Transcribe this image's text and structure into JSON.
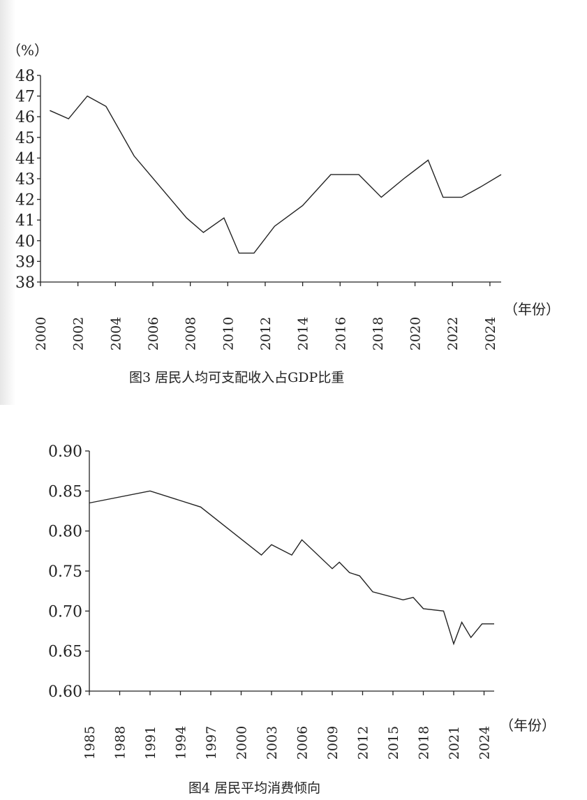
{
  "chart_data": [
    {
      "type": "line",
      "title": "图3 居民人均可支配收入占GDP比重",
      "ylabel": "（%）",
      "xlabel": "（年份）",
      "ylim": [
        38,
        48
      ],
      "xlim": [
        2000,
        2024.6
      ],
      "y_ticks": [
        "48",
        "47",
        "46",
        "45",
        "44",
        "43",
        "42",
        "41",
        "40",
        "39",
        "38"
      ],
      "x_ticks": [
        "2000",
        "2002",
        "2004",
        "2006",
        "2008",
        "2010",
        "2012",
        "2014",
        "2016",
        "2018",
        "2020",
        "2022",
        "2024"
      ],
      "series": [
        {
          "name": "居民人均可支配收入占GDP比重",
          "x": [
            2000.5,
            2001.5,
            2002.5,
            2003.5,
            2005,
            2006.4,
            2007.8,
            2008.7,
            2009.8,
            2010.6,
            2011.4,
            2012.5,
            2014,
            2015.5,
            2017,
            2018.2,
            2019.4,
            2020.7,
            2021.5,
            2022.5,
            2023.5,
            2024.6
          ],
          "values": [
            46.3,
            45.9,
            47.0,
            46.5,
            44.1,
            42.6,
            41.1,
            40.4,
            41.1,
            39.4,
            39.4,
            40.7,
            41.7,
            43.2,
            43.2,
            42.1,
            43.0,
            43.9,
            42.1,
            42.1,
            42.6,
            43.2
          ]
        }
      ]
    },
    {
      "type": "line",
      "title": "图4 居民平均消费倾向",
      "xlabel": "（年份）",
      "ylim": [
        0.6,
        0.9
      ],
      "xlim": [
        1985,
        2025
      ],
      "y_ticks": [
        "0.90",
        "0.85",
        "0.80",
        "0.75",
        "0.70",
        "0.65",
        "0.60"
      ],
      "x_ticks": [
        "1985",
        "1988",
        "1991",
        "1994",
        "1997",
        "2000",
        "2003",
        "2006",
        "2009",
        "2012",
        "2015",
        "2018",
        "2021",
        "2024"
      ],
      "series": [
        {
          "name": "居民平均消费倾向",
          "x": [
            1985,
            1991,
            1996,
            2002,
            2003,
            2005,
            2006,
            2009,
            2009.7,
            2010.7,
            2011.7,
            2013,
            2016,
            2017,
            2018,
            2020,
            2021,
            2021.8,
            2022.7,
            2023.8,
            2025
          ],
          "values": [
            0.835,
            0.85,
            0.83,
            0.77,
            0.783,
            0.77,
            0.789,
            0.753,
            0.761,
            0.748,
            0.744,
            0.724,
            0.714,
            0.717,
            0.703,
            0.7,
            0.659,
            0.686,
            0.667,
            0.684,
            0.684
          ]
        }
      ]
    }
  ]
}
